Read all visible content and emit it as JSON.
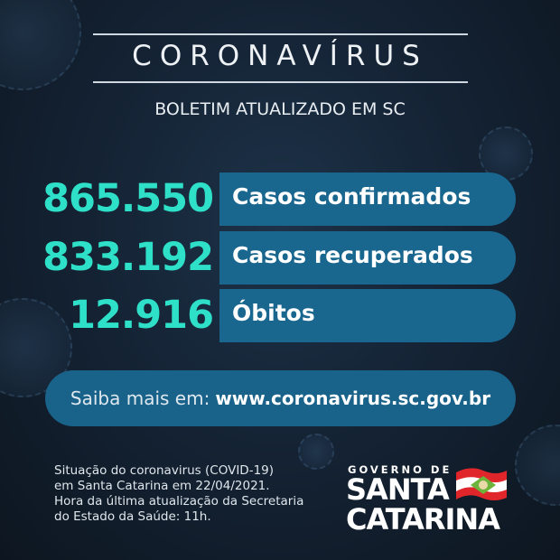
{
  "header": {
    "title": "CORONAVÍRUS",
    "subtitle": "BOLETIM ATUALIZADO EM SC"
  },
  "stats": [
    {
      "value": "865.550",
      "label": "Casos confirmados"
    },
    {
      "value": "833.192",
      "label": "Casos recuperados"
    },
    {
      "value": "12.916",
      "label": "Óbitos"
    }
  ],
  "link": {
    "prefix": "Saiba mais em:",
    "url": "www.coronavirus.sc.gov.br"
  },
  "footer": {
    "lines": [
      "Situação do coronavirus (COVID-19)",
      "em Santa Catarina em 22/04/2021.",
      "Hora da última atualização da Secretaria",
      "do Estado da Saúde: 11h."
    ]
  },
  "logo": {
    "line0": "GOVERNO DE",
    "line1": "SANTA",
    "line2": "CATARINA"
  },
  "colors": {
    "accent": "#2fe0c9",
    "bar": "#19668f",
    "background": "#142233",
    "flag_red": "#e0262b",
    "flag_green": "#6bb33a"
  }
}
